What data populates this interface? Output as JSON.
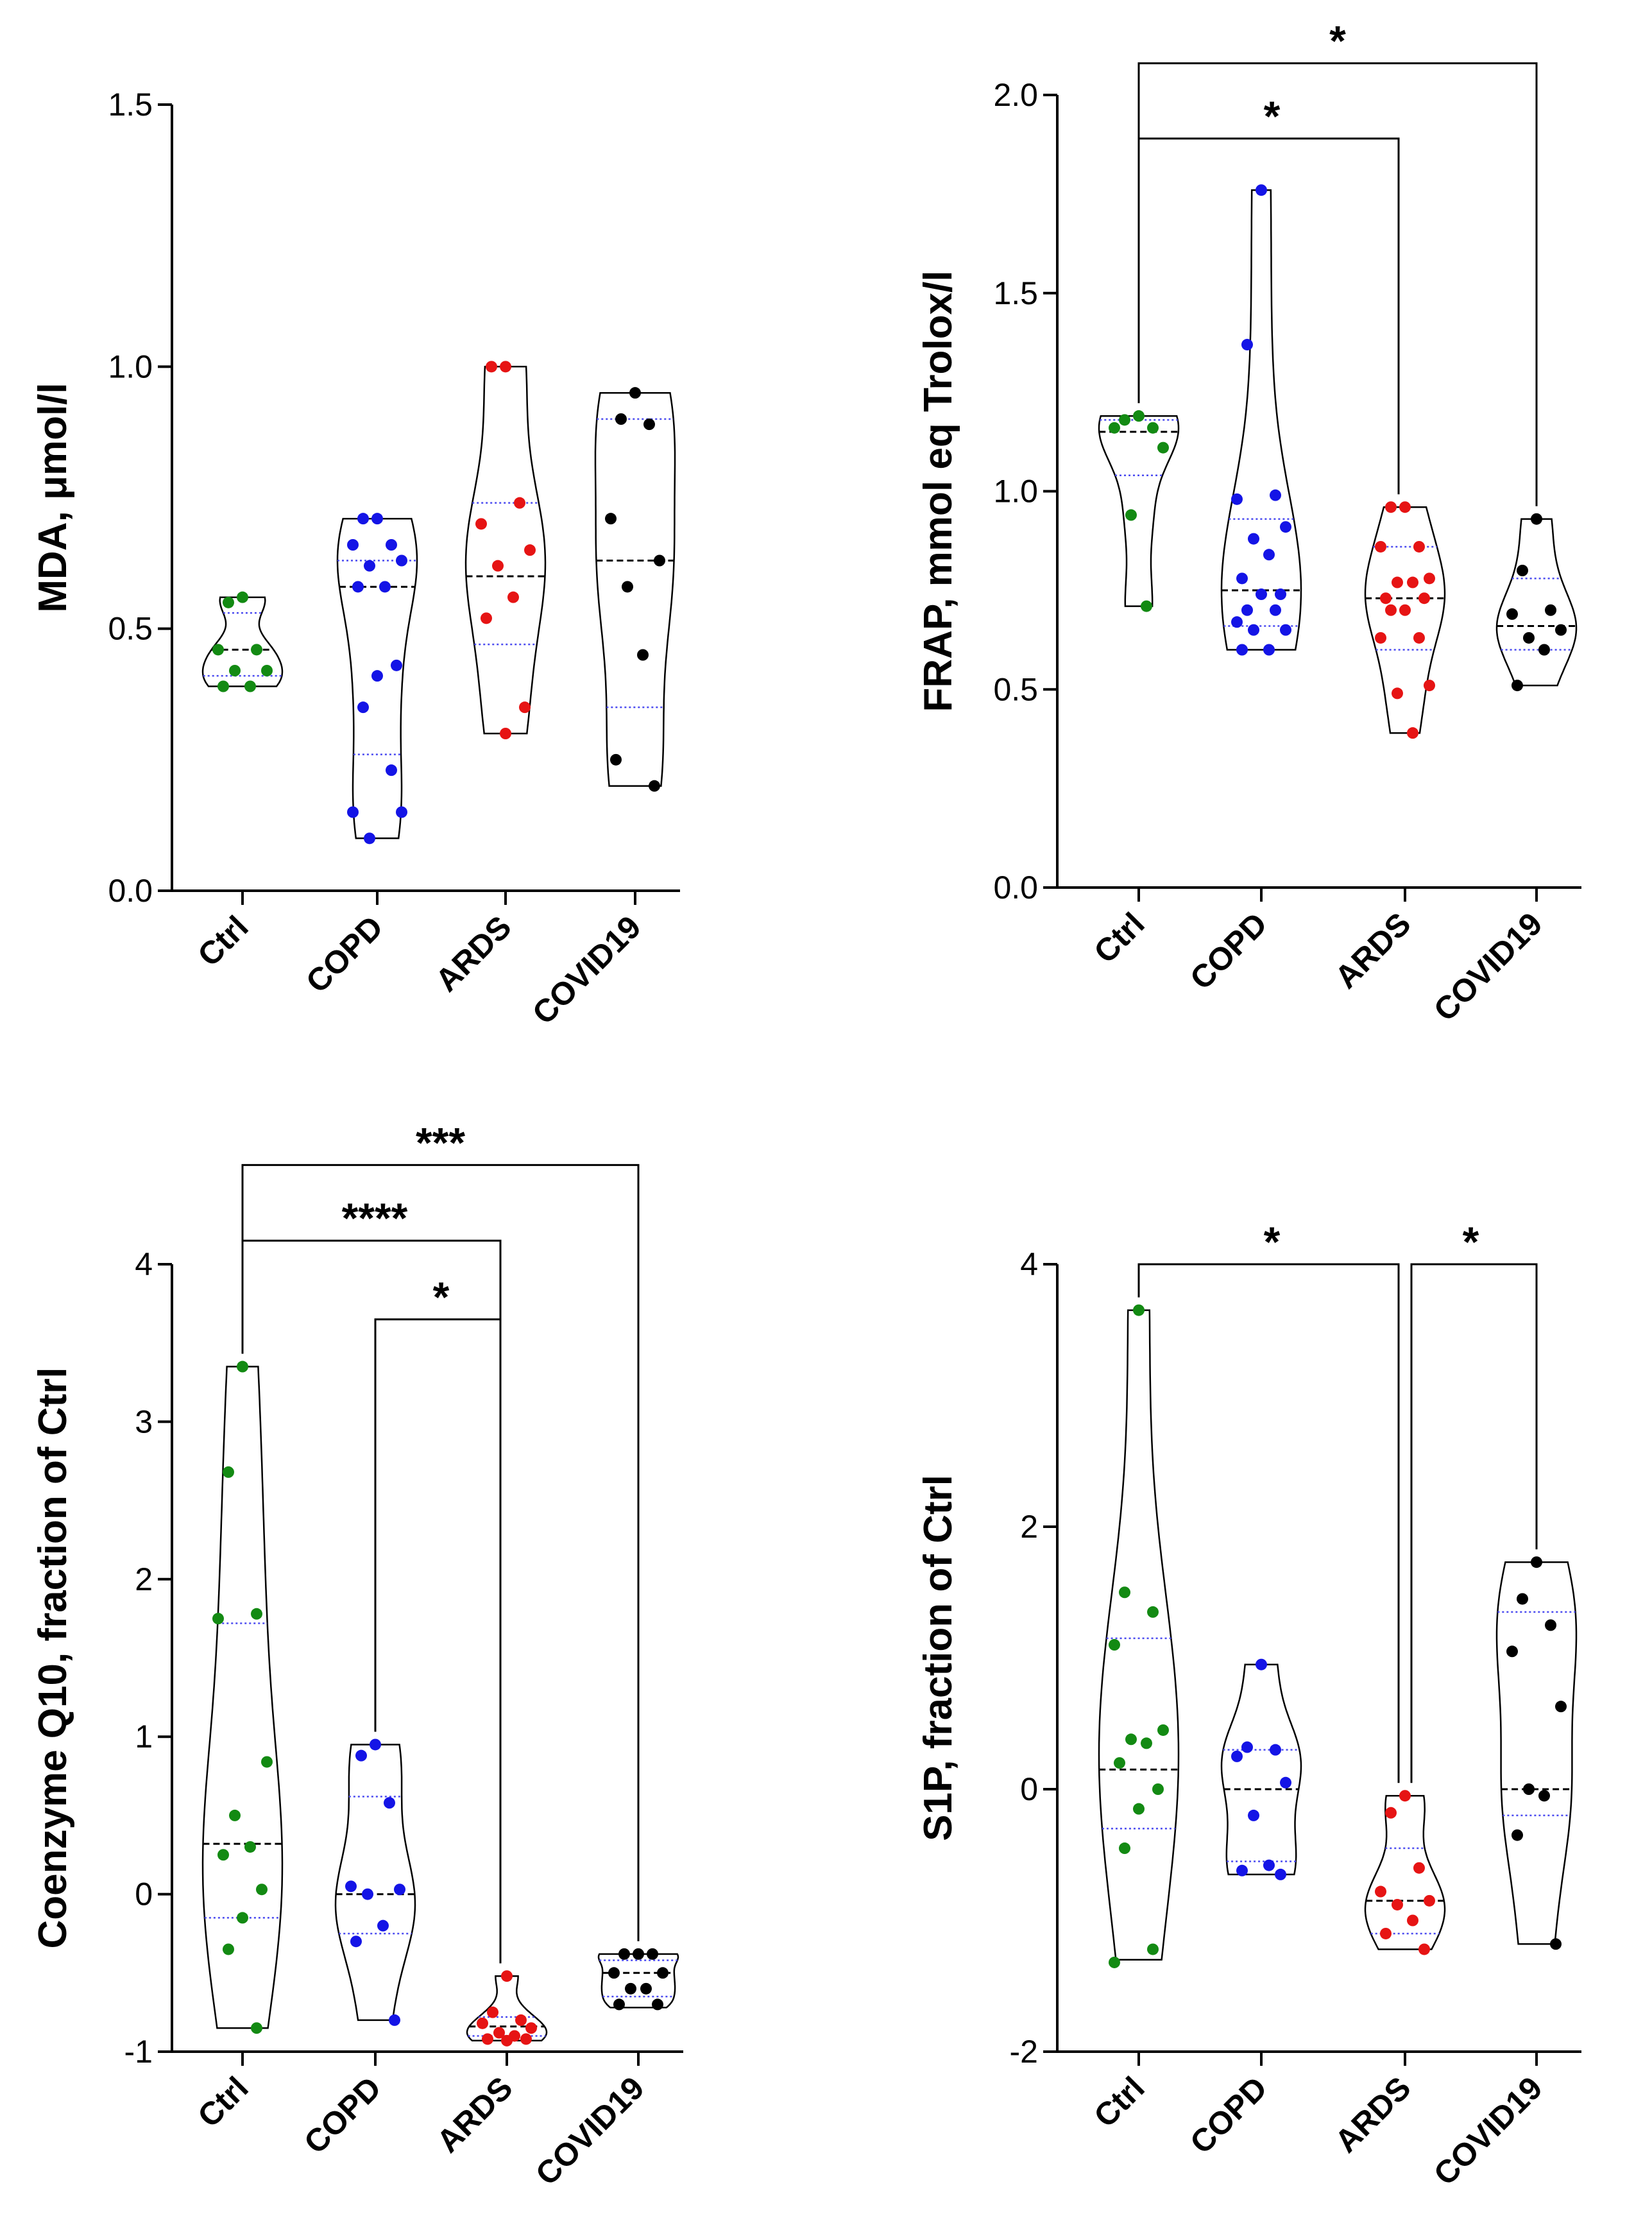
{
  "colors": {
    "Ctrl": "#138a13",
    "COPD": "#1414e6",
    "ARDS": "#e61414",
    "COVID19": "#000000",
    "quartile": "#4a4af0",
    "outline": "#000000"
  },
  "chart_data": [
    {
      "type": "violin",
      "ylabel": "MDA, μmol/l",
      "categories": [
        "Ctrl",
        "COPD",
        "ARDS",
        "COVID19"
      ],
      "ylim": [
        0,
        1.5
      ],
      "yticks": [
        0,
        0.5,
        1,
        1.5
      ],
      "ytick_labels": [
        "0.0",
        "0.5",
        "1.0",
        "1.5"
      ],
      "series": [
        {
          "name": "Ctrl",
          "points": [
            0.56,
            0.55,
            0.46,
            0.46,
            0.42,
            0.42,
            0.39,
            0.39
          ],
          "median": 0.46,
          "q1": 0.41,
          "q3": 0.53,
          "min": 0.39,
          "max": 0.56
        },
        {
          "name": "COPD",
          "points": [
            0.71,
            0.71,
            0.66,
            0.66,
            0.63,
            0.62,
            0.58,
            0.58,
            0.43,
            0.41,
            0.35,
            0.23,
            0.15,
            0.15,
            0.1
          ],
          "median": 0.58,
          "q1": 0.26,
          "q3": 0.63,
          "min": 0.1,
          "max": 0.71
        },
        {
          "name": "ARDS",
          "points": [
            1.0,
            1.0,
            0.74,
            0.7,
            0.65,
            0.62,
            0.56,
            0.52,
            0.35,
            0.3
          ],
          "median": 0.6,
          "q1": 0.47,
          "q3": 0.74,
          "min": 0.3,
          "max": 1.0
        },
        {
          "name": "COVID19",
          "points": [
            0.95,
            0.9,
            0.89,
            0.71,
            0.63,
            0.58,
            0.45,
            0.25,
            0.2
          ],
          "median": 0.63,
          "q1": 0.35,
          "q3": 0.9,
          "min": 0.2,
          "max": 0.95
        }
      ],
      "significance": []
    },
    {
      "type": "violin",
      "ylabel": "FRAP, mmol eq Trolox/l",
      "categories": [
        "Ctrl",
        "COPD",
        "ARDS",
        "COVID19"
      ],
      "ylim": [
        0,
        2
      ],
      "yticks": [
        0,
        0.5,
        1,
        1.5,
        2
      ],
      "ytick_labels": [
        "0.0",
        "0.5",
        "1.0",
        "1.5",
        "2.0"
      ],
      "series": [
        {
          "name": "Ctrl",
          "points": [
            1.19,
            1.18,
            1.16,
            1.16,
            1.11,
            0.94,
            0.71
          ],
          "median": 1.15,
          "q1": 1.04,
          "q3": 1.18,
          "min": 0.71,
          "max": 1.19
        },
        {
          "name": "COPD",
          "points": [
            1.76,
            1.37,
            0.99,
            0.98,
            0.91,
            0.88,
            0.84,
            0.78,
            0.74,
            0.74,
            0.7,
            0.7,
            0.67,
            0.65,
            0.65,
            0.6,
            0.6
          ],
          "median": 0.75,
          "q1": 0.66,
          "q3": 0.93,
          "min": 0.6,
          "max": 1.76
        },
        {
          "name": "ARDS",
          "points": [
            0.96,
            0.96,
            0.86,
            0.86,
            0.78,
            0.77,
            0.77,
            0.73,
            0.73,
            0.7,
            0.7,
            0.63,
            0.63,
            0.51,
            0.49,
            0.39
          ],
          "median": 0.73,
          "q1": 0.6,
          "q3": 0.86,
          "min": 0.39,
          "max": 0.96
        },
        {
          "name": "COVID19",
          "points": [
            0.93,
            0.8,
            0.7,
            0.69,
            0.65,
            0.63,
            0.6,
            0.51
          ],
          "median": 0.66,
          "q1": 0.6,
          "q3": 0.78,
          "min": 0.51,
          "max": 0.93
        }
      ],
      "significance": [
        {
          "from": "Ctrl",
          "to": "ARDS",
          "label": "*",
          "y": 1.89
        },
        {
          "from": "Ctrl",
          "to": "COVID19",
          "label": "*",
          "y": 2.08
        }
      ]
    },
    {
      "type": "violin",
      "ylabel": "Coenzyme Q10, fraction of Ctrl",
      "categories": [
        "Ctrl",
        "COPD",
        "ARDS",
        "COVID19"
      ],
      "ylim": [
        -1,
        4
      ],
      "yticks": [
        -1,
        0,
        1,
        2,
        3,
        4
      ],
      "ytick_labels": [
        "-1",
        "0",
        "1",
        "2",
        "3",
        "4"
      ],
      "series": [
        {
          "name": "Ctrl",
          "points": [
            3.35,
            2.68,
            1.78,
            1.75,
            0.84,
            0.5,
            0.3,
            0.25,
            0.03,
            -0.15,
            -0.35,
            -0.85
          ],
          "median": 0.32,
          "q1": -0.15,
          "q3": 1.72,
          "min": -0.85,
          "max": 3.35
        },
        {
          "name": "COPD",
          "points": [
            0.95,
            0.88,
            0.58,
            0.05,
            0.03,
            0.0,
            -0.2,
            -0.3,
            -0.8
          ],
          "median": 0.0,
          "q1": -0.25,
          "q3": 0.62,
          "min": -0.8,
          "max": 0.95
        },
        {
          "name": "ARDS",
          "points": [
            -0.52,
            -0.75,
            -0.8,
            -0.82,
            -0.85,
            -0.88,
            -0.9,
            -0.92,
            -0.92,
            -0.93
          ],
          "median": -0.84,
          "q1": -0.9,
          "q3": -0.78,
          "min": -0.93,
          "max": -0.52
        },
        {
          "name": "COVID19",
          "points": [
            -0.38,
            -0.38,
            -0.38,
            -0.5,
            -0.5,
            -0.6,
            -0.6,
            -0.7,
            -0.7
          ],
          "median": -0.5,
          "q1": -0.65,
          "q3": -0.42,
          "min": -0.72,
          "max": -0.38
        }
      ],
      "significance": [
        {
          "from": "COPD",
          "to": "ARDS",
          "label": "*",
          "y": 3.65
        },
        {
          "from": "Ctrl",
          "to": "ARDS",
          "label": "****",
          "y": 4.15
        },
        {
          "from": "Ctrl",
          "to": "COVID19",
          "label": "***",
          "y": 4.63
        }
      ]
    },
    {
      "type": "violin",
      "ylabel": "S1P, fraction of Ctrl",
      "categories": [
        "Ctrl",
        "COPD",
        "ARDS",
        "COVID19"
      ],
      "ylim": [
        -2,
        4
      ],
      "yticks": [
        -2,
        0,
        2,
        4
      ],
      "ytick_labels": [
        "-2",
        "0",
        "2",
        "4"
      ],
      "series": [
        {
          "name": "Ctrl",
          "points": [
            3.65,
            1.5,
            1.35,
            1.1,
            0.45,
            0.38,
            0.35,
            0.2,
            0.0,
            -0.15,
            -0.45,
            -1.22,
            -1.32
          ],
          "median": 0.15,
          "q1": -0.3,
          "q3": 1.15,
          "min": -1.3,
          "max": 3.65
        },
        {
          "name": "COPD",
          "points": [
            0.95,
            0.32,
            0.3,
            0.25,
            0.05,
            -0.2,
            -0.58,
            -0.62,
            -0.65
          ],
          "median": 0.0,
          "q1": -0.55,
          "q3": 0.3,
          "min": -0.65,
          "max": 0.95
        },
        {
          "name": "ARDS",
          "points": [
            -0.05,
            -0.18,
            -0.6,
            -0.78,
            -0.85,
            -0.88,
            -1.0,
            -1.1,
            -1.22
          ],
          "median": -0.85,
          "q1": -1.1,
          "q3": -0.45,
          "min": -1.22,
          "max": -0.05
        },
        {
          "name": "COVID19",
          "points": [
            1.73,
            1.45,
            1.25,
            1.05,
            0.63,
            0.0,
            -0.05,
            -0.35,
            -1.18
          ],
          "median": 0.0,
          "q1": -0.2,
          "q3": 1.35,
          "min": -1.18,
          "max": 1.73
        }
      ],
      "significance": [
        {
          "from": "Ctrl",
          "to": "ARDS",
          "label": "*",
          "y": 4.0
        },
        {
          "from": "ARDS",
          "to": "COVID19",
          "label": "*",
          "y": 4.0
        }
      ]
    }
  ]
}
